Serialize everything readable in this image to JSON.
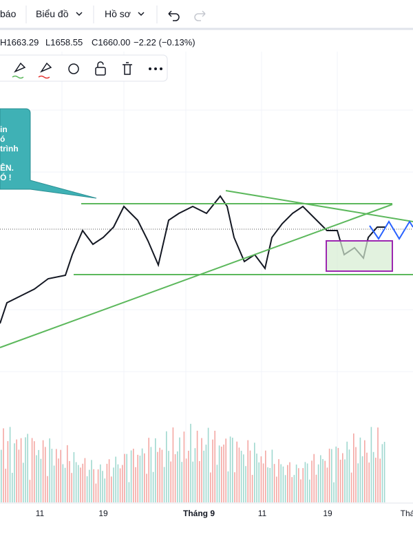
{
  "toolbar": {
    "items": [
      "báo",
      "Biểu đồ",
      "Hồ sơ"
    ]
  },
  "ohlc": {
    "high": "H1663.29",
    "low": "L1658.55",
    "close": "C1660.00",
    "change": "−2.22 (−0.13%)"
  },
  "callout": {
    "lines": [
      "in",
      "ó",
      "trình",
      "ÊN.",
      "Ó !"
    ]
  },
  "x_axis": {
    "labels": [
      "11",
      "19",
      "Tháng 9",
      "11",
      "19",
      "Thá"
    ]
  }
}
